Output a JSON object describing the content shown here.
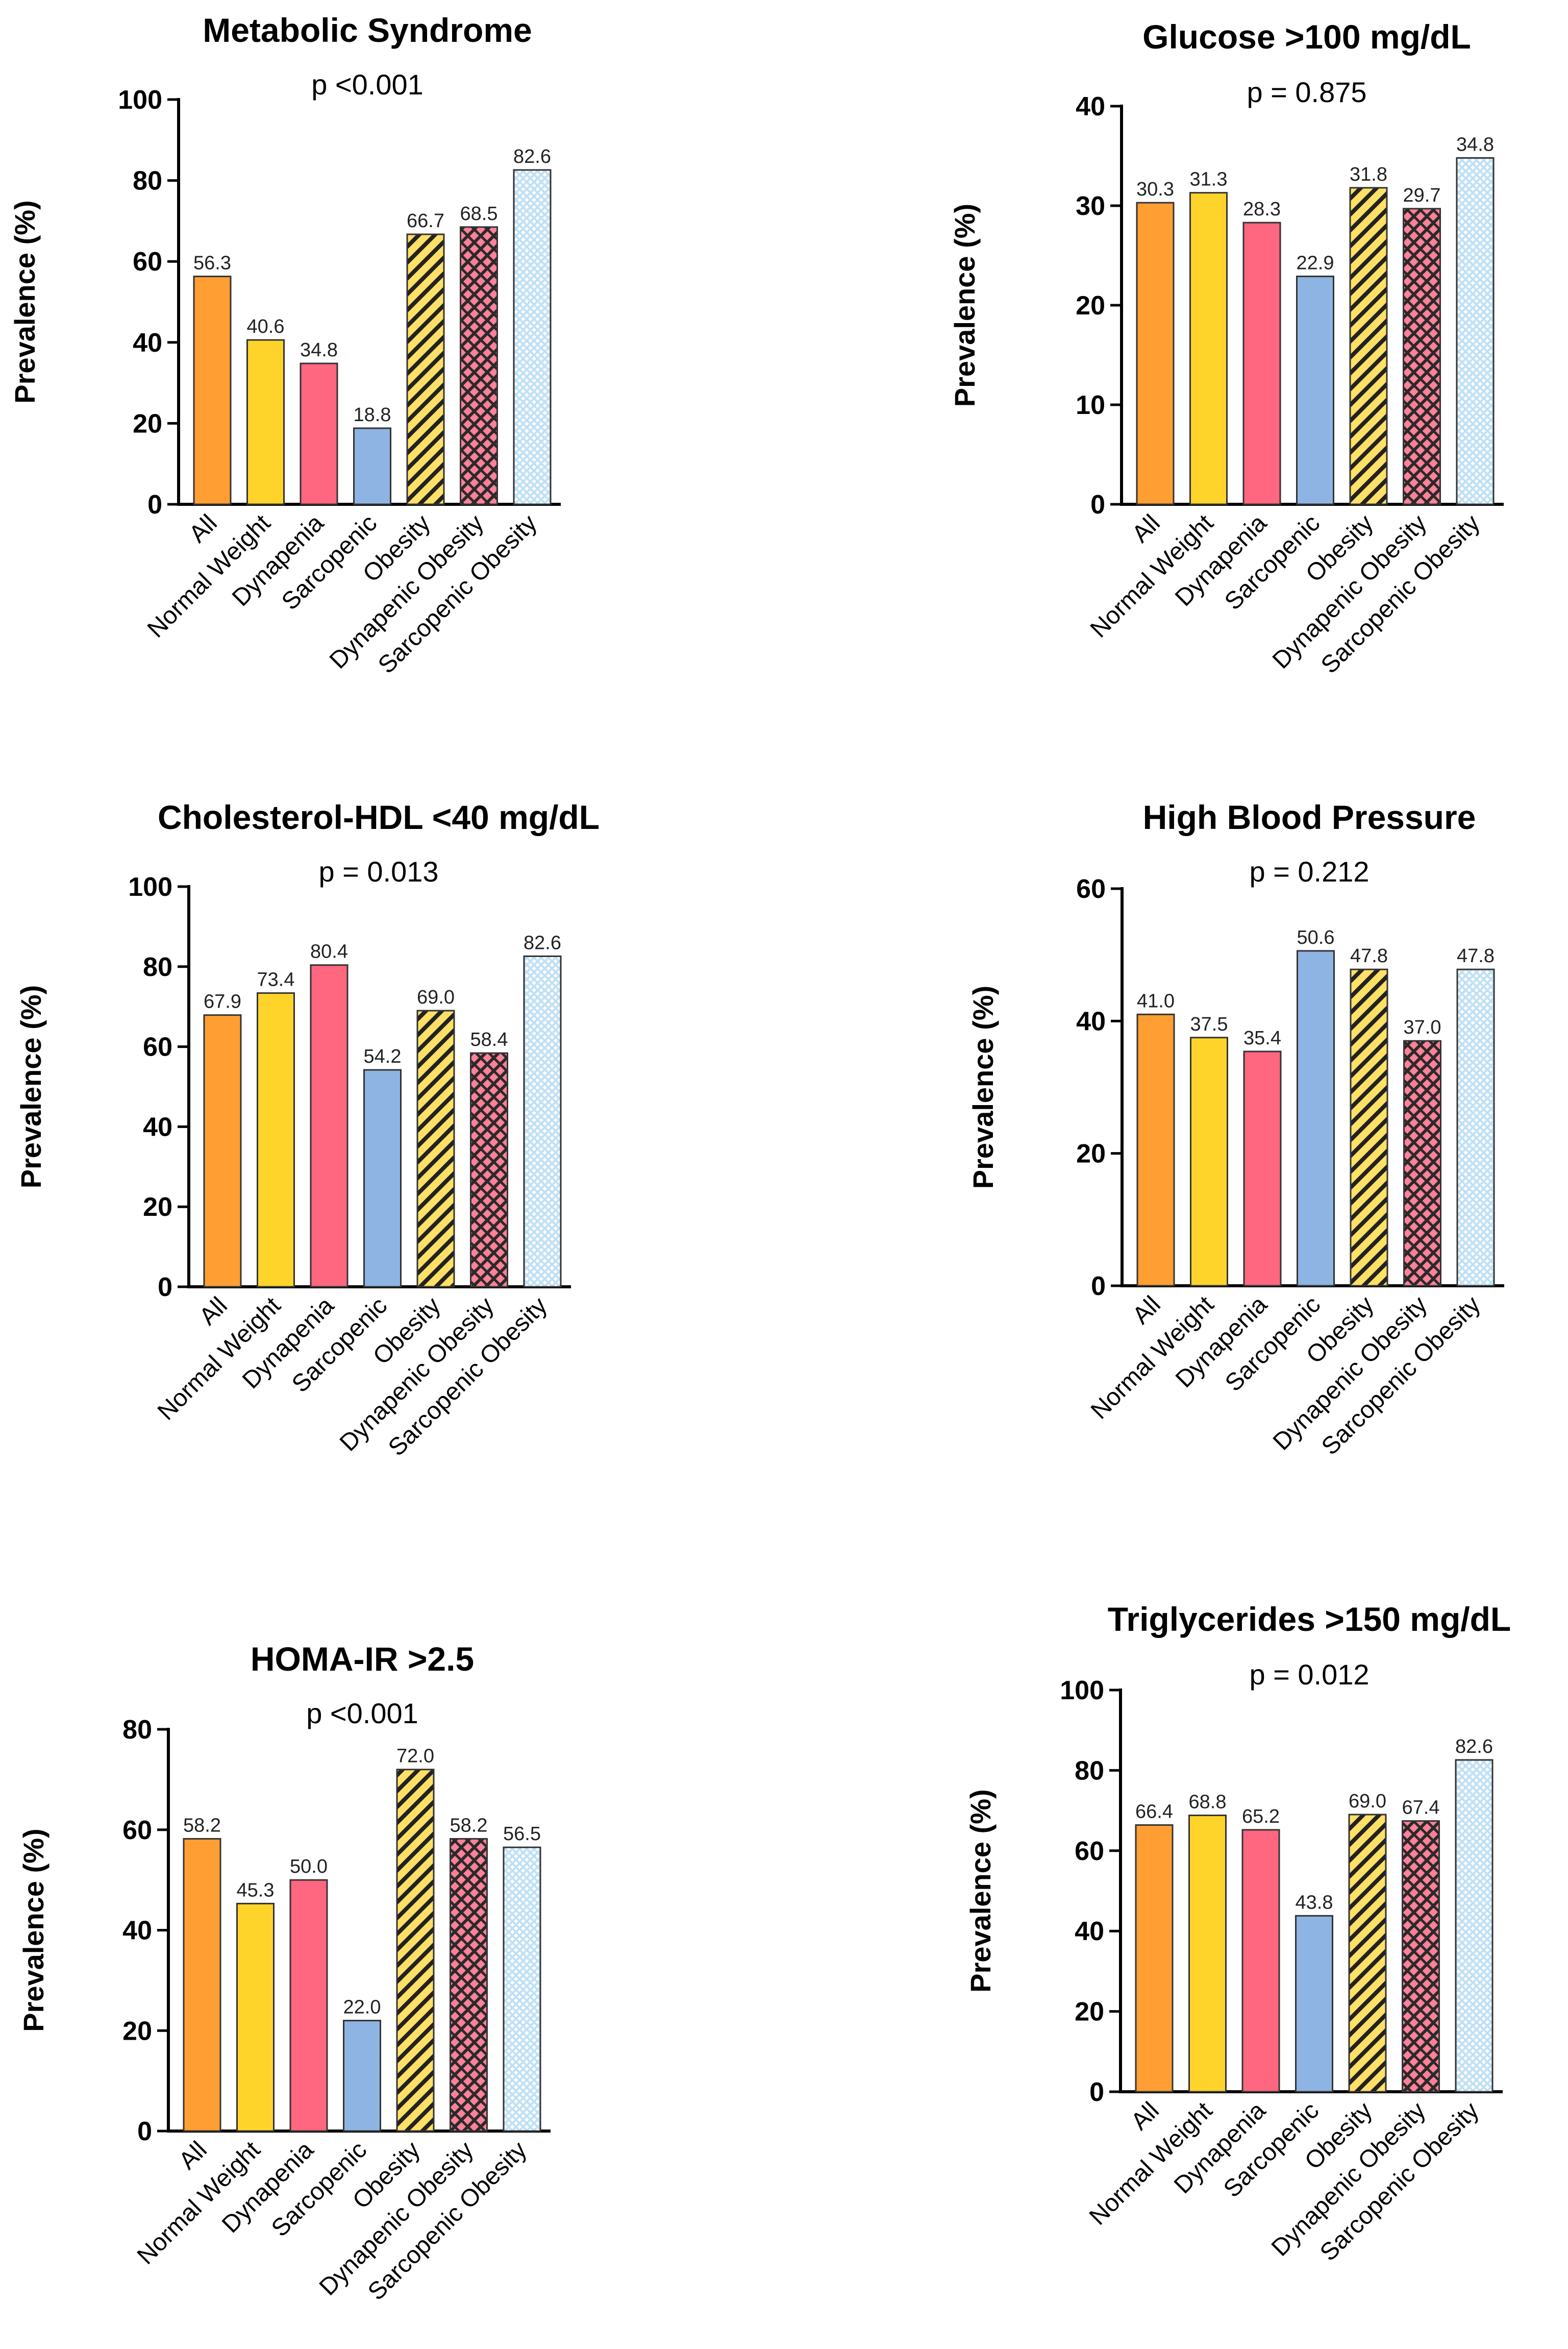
{
  "colors": {
    "All": "#FF9E33",
    "Normal Weight": "#FFD42A",
    "Dynapenia": "#FF6680",
    "Sarcopenic": "#8DB4E2",
    "Obesity": "#FFE066",
    "Dynapenic Obesity": "#FF8099",
    "Sarcopenic Obesity": "#BFE0F5"
  },
  "patterns": {
    "All": "solid",
    "Normal Weight": "solid",
    "Dynapenia": "solid",
    "Sarcopenic": "solid",
    "Obesity": "diagonal-hatch",
    "Dynapenic Obesity": "crosshatch",
    "Sarcopenic Obesity": "checker"
  },
  "chart_data": [
    {
      "type": "bar",
      "title": "Metabolic Syndrome",
      "p_value": "p <0.001",
      "ylabel": "Prevalence (%)",
      "xlabel": "",
      "ylim": [
        0,
        100
      ],
      "yticks": [
        0,
        20,
        40,
        60,
        80,
        100
      ],
      "categories": [
        "All",
        "Normal Weight",
        "Dynapenia",
        "Sarcopenic",
        "Obesity",
        "Dynapenic Obesity",
        "Sarcopenic Obesity"
      ],
      "values": [
        56.3,
        40.6,
        34.8,
        18.8,
        66.7,
        68.5,
        82.6
      ],
      "value_labels": [
        "56.3",
        "40.6",
        "34.8",
        "18.8",
        "66.7",
        "68.5",
        "82.6"
      ]
    },
    {
      "type": "bar",
      "title": "Glucose >100 mg/dL",
      "p_value": "p = 0.875",
      "ylabel": "Prevalence (%)",
      "xlabel": "",
      "ylim": [
        0,
        40
      ],
      "yticks": [
        0,
        10,
        20,
        30,
        40
      ],
      "categories": [
        "All",
        "Normal Weight",
        "Dynapenia",
        "Sarcopenic",
        "Obesity",
        "Dynapenic Obesity",
        "Sarcopenic Obesity"
      ],
      "values": [
        30.3,
        31.3,
        28.3,
        22.9,
        31.8,
        29.7,
        34.8
      ],
      "value_labels": [
        "30.3",
        "31.3",
        "28.3",
        "22.9",
        "31.8",
        "29.7",
        "34.8"
      ]
    },
    {
      "type": "bar",
      "title": "Cholesterol-HDL <40 mg/dL",
      "p_value": "p = 0.013",
      "ylabel": "Prevalence (%)",
      "xlabel": "",
      "ylim": [
        0,
        100
      ],
      "yticks": [
        0,
        20,
        40,
        60,
        80,
        100
      ],
      "categories": [
        "All",
        "Normal Weight",
        "Dynapenia",
        "Sarcopenic",
        "Obesity",
        "Dynapenic Obesity",
        "Sarcopenic Obesity"
      ],
      "values": [
        67.9,
        73.4,
        80.4,
        54.2,
        69.0,
        58.4,
        82.6
      ],
      "value_labels": [
        "67.9",
        "73.4",
        "80.4",
        "54.2",
        "69.0",
        "58.4",
        "82.6"
      ]
    },
    {
      "type": "bar",
      "title": "High Blood Pressure",
      "p_value": "p = 0.212",
      "ylabel": "Prevalence (%)",
      "xlabel": "",
      "ylim": [
        0,
        60
      ],
      "yticks": [
        0,
        20,
        40,
        60
      ],
      "categories": [
        "All",
        "Normal Weight",
        "Dynapenia",
        "Sarcopenic",
        "Obesity",
        "Dynapenic Obesity",
        "Sarcopenic Obesity"
      ],
      "values": [
        41.0,
        37.5,
        35.4,
        50.6,
        47.8,
        37.0,
        47.8
      ],
      "value_labels": [
        "41.0",
        "37.5",
        "35.4",
        "50.6",
        "47.8",
        "37.0",
        "47.8"
      ]
    },
    {
      "type": "bar",
      "title": "HOMA-IR >2.5",
      "p_value": "p <0.001",
      "ylabel": "Prevalence (%)",
      "xlabel": "",
      "ylim": [
        0,
        80
      ],
      "yticks": [
        0,
        20,
        40,
        60,
        80
      ],
      "categories": [
        "All",
        "Normal Weight",
        "Dynapenia",
        "Sarcopenic",
        "Obesity",
        "Dynapenic Obesity",
        "Sarcopenic Obesity"
      ],
      "values": [
        58.2,
        45.3,
        50.0,
        22.0,
        72.0,
        58.2,
        56.5
      ],
      "value_labels": [
        "58.2",
        "45.3",
        "50.0",
        "22.0",
        "72.0",
        "58.2",
        "56.5"
      ]
    },
    {
      "type": "bar",
      "title": "Triglycerides >150 mg/dL",
      "p_value": "p = 0.012",
      "ylabel": "Prevalence (%)",
      "xlabel": "",
      "ylim": [
        0,
        100
      ],
      "yticks": [
        0,
        20,
        40,
        60,
        80,
        100
      ],
      "categories": [
        "All",
        "Normal Weight",
        "Dynapenia",
        "Sarcopenic",
        "Obesity",
        "Dynapenic Obesity",
        "Sarcopenic Obesity"
      ],
      "values": [
        66.4,
        68.8,
        65.2,
        43.8,
        69.0,
        67.4,
        82.6
      ],
      "value_labels": [
        "66.4",
        "68.8",
        "65.2",
        "43.8",
        "69.0",
        "67.4",
        "82.6"
      ]
    }
  ]
}
